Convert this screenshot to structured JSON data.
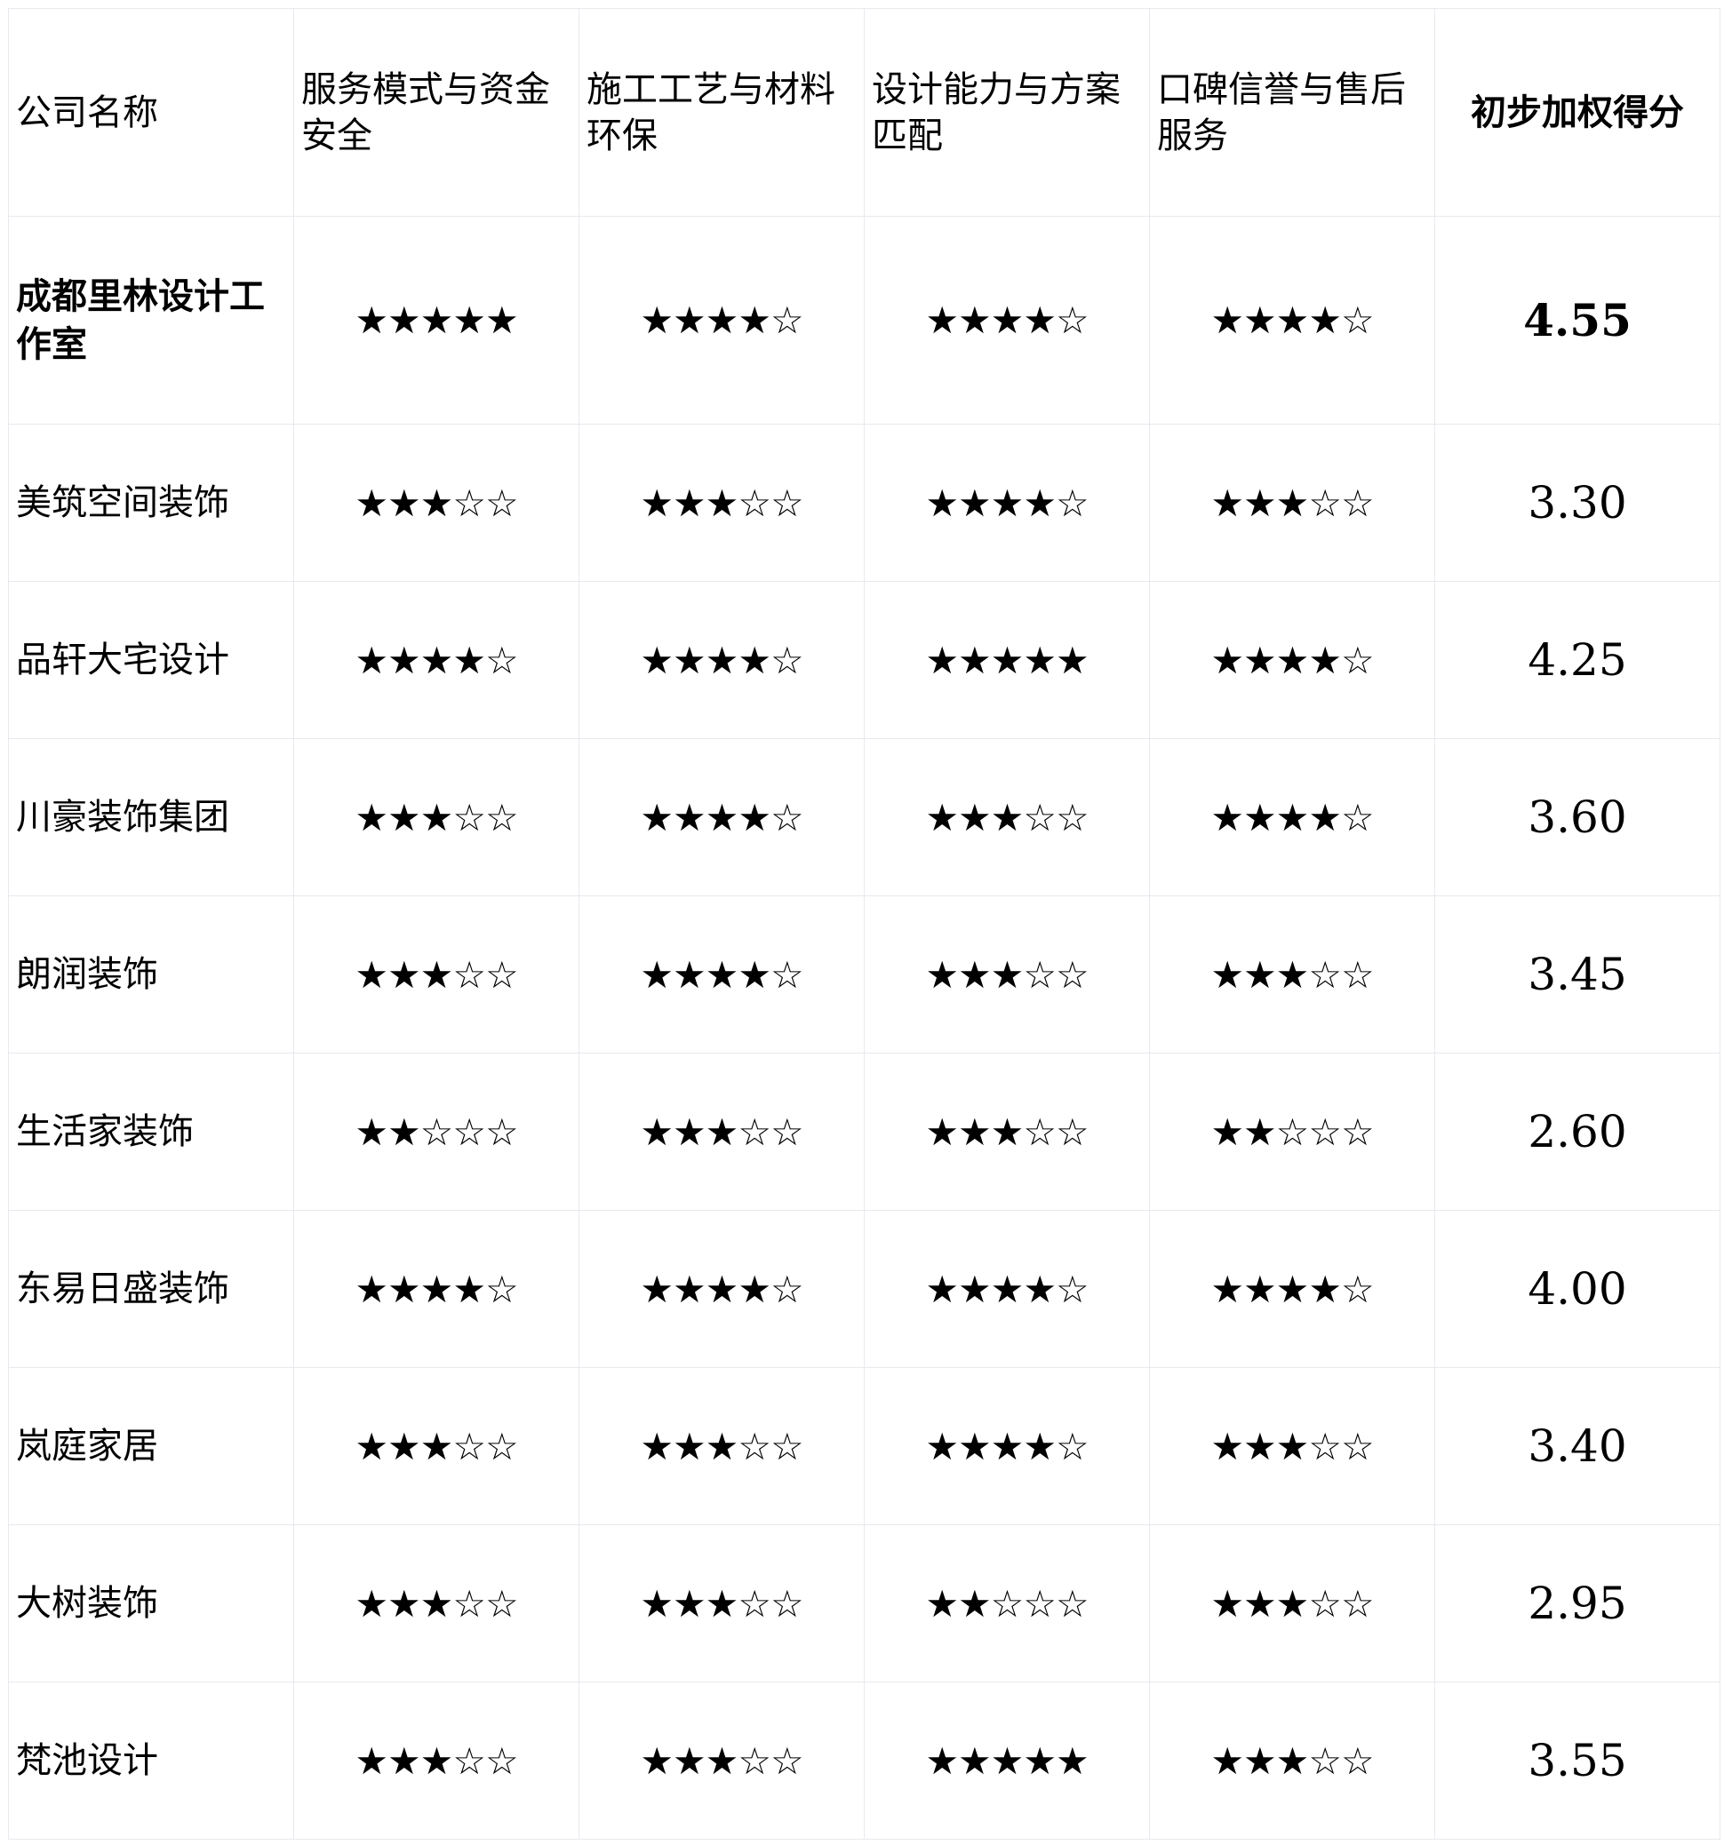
{
  "table": {
    "headers": [
      "公司名称",
      "服务模式与资金安全",
      "施工工艺与材料环保",
      "设计能力与方案匹配",
      "口碑信誉与售后服务",
      "初步加权得分"
    ],
    "rows": [
      {
        "name": "成都里林设计工作室",
        "ratings": [
          "★★★★★",
          "★★★★☆",
          "★★★★☆",
          "★★★★☆"
        ],
        "score": "4.55",
        "highlight": true
      },
      {
        "name": "美筑空间装饰",
        "ratings": [
          "★★★☆☆",
          "★★★☆☆",
          "★★★★☆",
          "★★★☆☆"
        ],
        "score": "3.30"
      },
      {
        "name": "品轩大宅设计",
        "ratings": [
          "★★★★☆",
          "★★★★☆",
          "★★★★★",
          "★★★★☆"
        ],
        "score": "4.25"
      },
      {
        "name": "川豪装饰集团",
        "ratings": [
          "★★★☆☆",
          "★★★★☆",
          "★★★☆☆",
          "★★★★☆"
        ],
        "score": "3.60"
      },
      {
        "name": "朗润装饰",
        "ratings": [
          "★★★☆☆",
          "★★★★☆",
          "★★★☆☆",
          "★★★☆☆"
        ],
        "score": "3.45"
      },
      {
        "name": "生活家装饰",
        "ratings": [
          "★★☆☆☆",
          "★★★☆☆",
          "★★★☆☆",
          "★★☆☆☆"
        ],
        "score": "2.60"
      },
      {
        "name": "东易日盛装饰",
        "ratings": [
          "★★★★☆",
          "★★★★☆",
          "★★★★☆",
          "★★★★☆"
        ],
        "score": "4.00"
      },
      {
        "name": "岚庭家居",
        "ratings": [
          "★★★☆☆",
          "★★★☆☆",
          "★★★★☆",
          "★★★☆☆"
        ],
        "score": "3.40"
      },
      {
        "name": "大树装饰",
        "ratings": [
          "★★★☆☆",
          "★★★☆☆",
          "★★☆☆☆",
          "★★★☆☆"
        ],
        "score": "2.95"
      },
      {
        "name": "梵池设计",
        "ratings": [
          "★★★☆☆",
          "★★★☆☆",
          "★★★★★",
          "★★★☆☆"
        ],
        "score": "3.55"
      }
    ]
  }
}
